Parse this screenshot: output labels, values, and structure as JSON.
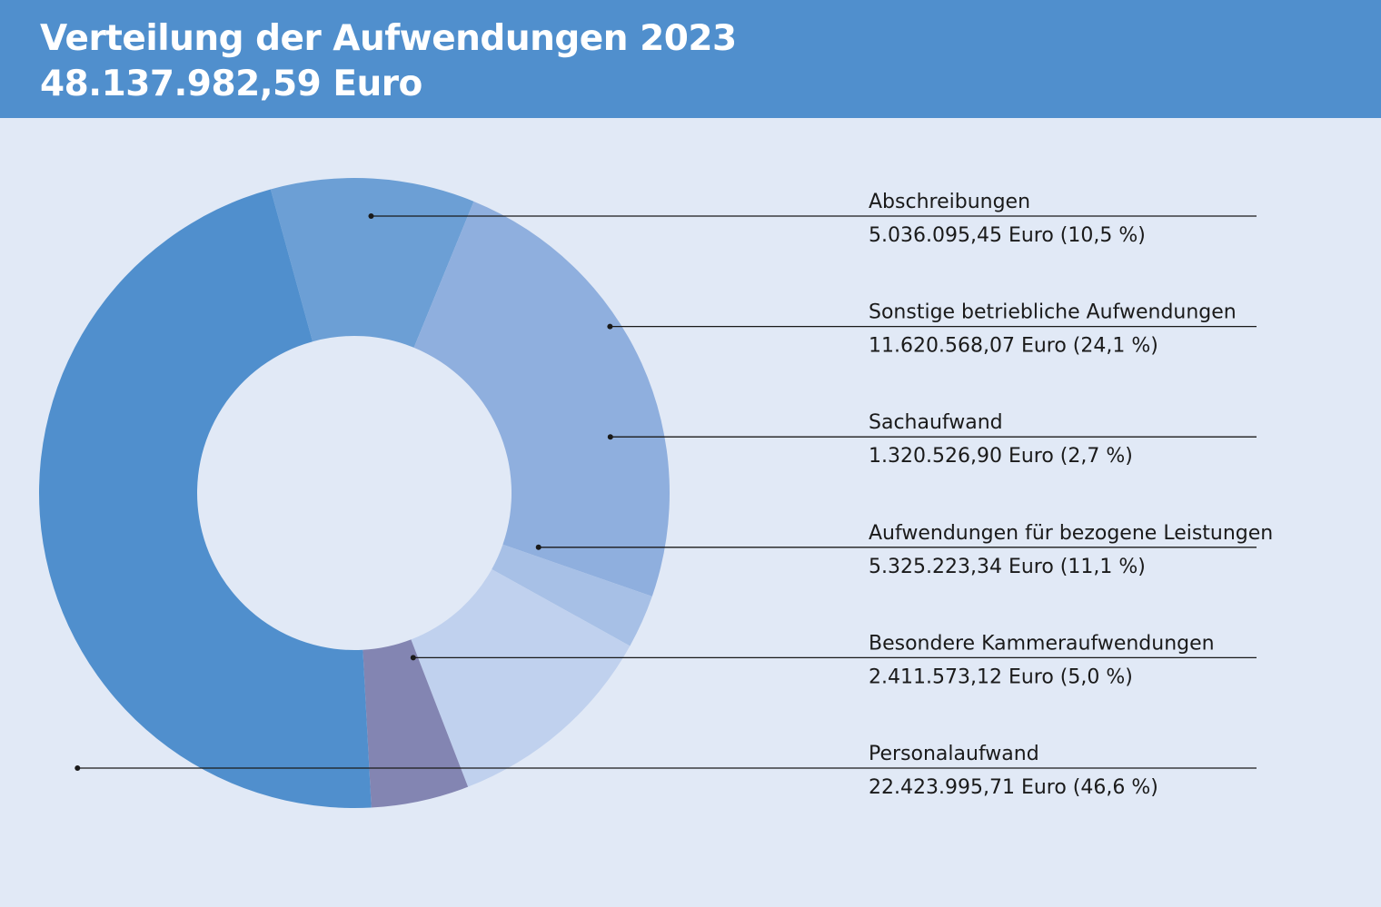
{
  "header": {
    "title": "Verteilung der Aufwendungen 2023",
    "total": "48.137.982,59 Euro",
    "background_color": "#508fcd"
  },
  "chart_data": {
    "type": "donut",
    "title": "Verteilung der Aufwendungen 2023",
    "subtitle": "48.137.982,59 Euro",
    "total": 48137982.59,
    "start_slice": "Abschreibungen",
    "direction": "clockwise",
    "slices": [
      {
        "name": "Abschreibungen",
        "value": 5036095.45,
        "percent": 10.5,
        "value_label": "5.036.095,45 Euro (10,5 %)",
        "color": "#6c9fd5"
      },
      {
        "name": "Sonstige betriebliche Aufwendungen",
        "value": 11620568.07,
        "percent": 24.1,
        "value_label": "11.620.568,07 Euro (24,1 %)",
        "color": "#8fafde"
      },
      {
        "name": "Sachaufwand",
        "value": 1320526.9,
        "percent": 2.7,
        "value_label": "1.320.526,90 Euro (2,7 %)",
        "color": "#a7c0e6"
      },
      {
        "name": "Aufwendungen für bezogene Leistungen",
        "value": 5325223.34,
        "percent": 11.1,
        "value_label": "5.325.223,34 Euro (11,1 %)",
        "color": "#c0d1ee"
      },
      {
        "name": "Besondere Kammeraufwendungen",
        "value": 2411573.12,
        "percent": 5.0,
        "value_label": "2.411.573,12 Euro (5,0 %)",
        "color": "#8385b2"
      },
      {
        "name": "Personalaufwand",
        "value": 22423995.71,
        "percent": 46.6,
        "value_label": "22.423.995,71 Euro (46,6 %)",
        "color": "#508fcd"
      }
    ]
  }
}
